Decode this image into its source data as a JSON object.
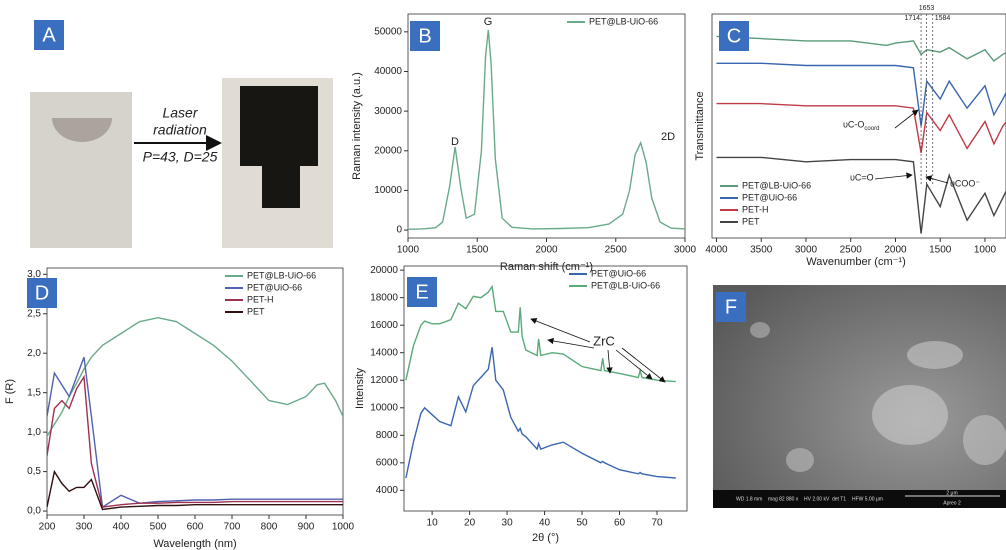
{
  "panel_a": {
    "label": "A",
    "arrow_text": [
      "Laser",
      "radiation",
      "P=43, D=25"
    ]
  },
  "panel_f": {
    "label": "F",
    "footer": [
      "WD 1.8 mm",
      "mag 82 880 x",
      "HV 2.00 kV",
      "det T1",
      "HFW 5.00 μm",
      "2 μm",
      "Apreo 2"
    ]
  },
  "chart_data": [
    {
      "type": "line",
      "label": "B",
      "x_label": "Raman shift (cm⁻¹)",
      "y_label": "Raman intensity (a.u.)",
      "x": [
        1000,
        1100,
        1200,
        1250,
        1300,
        1340,
        1380,
        1420,
        1480,
        1530,
        1560,
        1580,
        1600,
        1630,
        1680,
        1750,
        1900,
        2100,
        2300,
        2450,
        2550,
        2600,
        2640,
        2680,
        2720,
        2760,
        2820,
        2900,
        3000
      ],
      "series": [
        {
          "name": "PET@LB-UiO-66",
          "color": "#6aaa8a",
          "values": [
            200,
            300,
            600,
            2000,
            11000,
            21000,
            11000,
            3000,
            4000,
            20000,
            44000,
            50500,
            42000,
            18000,
            3000,
            700,
            300,
            400,
            600,
            1500,
            4000,
            10000,
            19000,
            22000,
            17000,
            8000,
            2000,
            500,
            300
          ]
        }
      ],
      "annotations": [
        "D",
        "G",
        "2D"
      ],
      "xlim": [
        1000,
        3000
      ],
      "xticks": [
        1000,
        1500,
        2000,
        2500,
        3000
      ],
      "ylim": [
        -2000,
        54500
      ],
      "yticks": [
        0,
        10000,
        20000,
        30000,
        40000,
        50000
      ],
      "legend": "upper right"
    },
    {
      "type": "line",
      "label": "C",
      "x_label": "Wavenumber (cm⁻¹)",
      "y_label": "Transmittance",
      "x": [
        4000,
        3500,
        3000,
        2500,
        2100,
        2000,
        1800,
        1714,
        1650,
        1500,
        1400,
        1200,
        1000,
        900,
        800,
        700
      ],
      "series": [
        {
          "name": "PET@LB-UiO-66",
          "color": "#5a9a7a",
          "values": [
            90,
            89,
            88,
            88,
            86,
            87,
            88,
            82,
            84,
            83,
            85,
            80,
            84,
            79,
            82,
            84
          ]
        },
        {
          "name": "PET@UiO-66",
          "color": "#3a66b0",
          "values": [
            78,
            78,
            77,
            77,
            77,
            77,
            76,
            50,
            70,
            62,
            70,
            58,
            68,
            55,
            62,
            70
          ]
        },
        {
          "name": "PET-H",
          "color": "#c03a48",
          "values": [
            60,
            60,
            59,
            59,
            59,
            59,
            58,
            38,
            56,
            48,
            55,
            40,
            52,
            42,
            50,
            55
          ]
        },
        {
          "name": "PET",
          "color": "#444444",
          "values": [
            36,
            36,
            34,
            35,
            35,
            35,
            34,
            2,
            24,
            14,
            28,
            8,
            20,
            10,
            18,
            26
          ]
        }
      ],
      "marked_wavenumbers": [
        1714,
        1653,
        1584
      ],
      "annotations": [
        {
          "text": "υC-O",
          "sub": "coord"
        },
        {
          "text": "υC=O"
        },
        {
          "text": "υCOO⁻"
        }
      ],
      "xlim": [
        4050,
        765
      ],
      "xticks": [
        4000,
        3500,
        3000,
        2500,
        2000,
        1500,
        1000
      ],
      "ylim": [
        0,
        100
      ],
      "legend": "lower left"
    },
    {
      "type": "line",
      "label": "D",
      "x_label": "Wavelength (nm)",
      "y_label": "F (R)",
      "x": [
        200,
        220,
        240,
        260,
        280,
        300,
        320,
        350,
        400,
        450,
        500,
        550,
        600,
        650,
        700,
        750,
        800,
        850,
        900,
        930,
        950,
        980,
        1000
      ],
      "series": [
        {
          "name": "PET@LB-UiO-66",
          "color": "#6aaa8a",
          "values": [
            0.95,
            1.1,
            1.25,
            1.45,
            1.62,
            1.8,
            1.95,
            2.1,
            2.25,
            2.4,
            2.45,
            2.4,
            2.25,
            2.1,
            1.9,
            1.65,
            1.4,
            1.35,
            1.45,
            1.6,
            1.62,
            1.4,
            1.2
          ]
        },
        {
          "name": "PET@UiO-66",
          "color": "#5060b0",
          "values": [
            1.2,
            1.75,
            1.6,
            1.45,
            1.7,
            1.95,
            1.2,
            0.05,
            0.2,
            0.1,
            0.12,
            0.13,
            0.14,
            0.14,
            0.15,
            0.15,
            0.15,
            0.15,
            0.15,
            0.15,
            0.15,
            0.15,
            0.15
          ]
        },
        {
          "name": "PET-H",
          "color": "#a03050",
          "values": [
            0.7,
            1.3,
            1.4,
            1.3,
            1.55,
            1.7,
            0.6,
            0.05,
            0.08,
            0.1,
            0.1,
            0.11,
            0.11,
            0.11,
            0.12,
            0.12,
            0.12,
            0.12,
            0.12,
            0.12,
            0.12,
            0.12,
            0.12
          ]
        },
        {
          "name": "PET",
          "color": "#301010",
          "values": [
            0.05,
            0.5,
            0.35,
            0.25,
            0.3,
            0.3,
            0.4,
            0.02,
            0.05,
            0.06,
            0.07,
            0.07,
            0.08,
            0.08,
            0.08,
            0.08,
            0.08,
            0.08,
            0.08,
            0.08,
            0.08,
            0.08,
            0.08
          ]
        }
      ],
      "xlim": [
        200,
        1000
      ],
      "xticks": [
        200,
        300,
        400,
        500,
        600,
        700,
        800,
        900,
        1000
      ],
      "ylim": [
        -0.05,
        3.08
      ],
      "yticks": [
        {
          "value": 0,
          "label": "0,0"
        },
        {
          "value": 0.5,
          "label": "0,5"
        },
        {
          "value": 1,
          "label": "1,0"
        },
        {
          "value": 1.5,
          "label": "1,5"
        },
        {
          "value": 2,
          "label": "2,0"
        },
        {
          "value": 2.5,
          "label": "2,5"
        },
        {
          "value": 3,
          "label": "3,0"
        }
      ],
      "legend": "upper right"
    },
    {
      "type": "line",
      "label": "E",
      "x_label": "2θ (°)",
      "y_label": "Intensity",
      "x": [
        3,
        5,
        7,
        8,
        10,
        12,
        15,
        17,
        19,
        21,
        23,
        25,
        26,
        27,
        29,
        31,
        33,
        33.5,
        34,
        35,
        38,
        38.4,
        39,
        42,
        45,
        50,
        55,
        55.5,
        56,
        60,
        65,
        65.5,
        66,
        70,
        75
      ],
      "series": [
        {
          "name": "PET@UiO-66",
          "color": "#3a66b0",
          "values": [
            4900,
            7500,
            9600,
            10000,
            9500,
            9000,
            8700,
            10800,
            9700,
            11600,
            12200,
            12800,
            14400,
            12000,
            11300,
            9300,
            8300,
            8500,
            8100,
            7900,
            7000,
            7400,
            7000,
            7300,
            7500,
            6700,
            6000,
            6100,
            6000,
            5500,
            5200,
            5300,
            5200,
            5000,
            4900
          ]
        },
        {
          "name": "PET@LB-UiO-66",
          "color": "#5aaa7a",
          "values": [
            12000,
            14500,
            16000,
            16300,
            16100,
            16100,
            16400,
            17600,
            17200,
            18100,
            18000,
            18400,
            18800,
            17000,
            17000,
            15500,
            15500,
            17300,
            15200,
            14200,
            13800,
            15000,
            13800,
            14000,
            13900,
            13000,
            12700,
            13600,
            12700,
            12500,
            12200,
            12700,
            12200,
            12000,
            11900
          ]
        }
      ],
      "annotations": [
        "ZrC"
      ],
      "xlim": [
        2.5,
        78
      ],
      "xticks": [
        10,
        20,
        30,
        40,
        50,
        60,
        70
      ],
      "ylim": [
        2500,
        20300
      ],
      "yticks": [
        4000,
        6000,
        8000,
        10000,
        12000,
        14000,
        16000,
        18000,
        20000
      ],
      "legend": "upper right"
    }
  ]
}
